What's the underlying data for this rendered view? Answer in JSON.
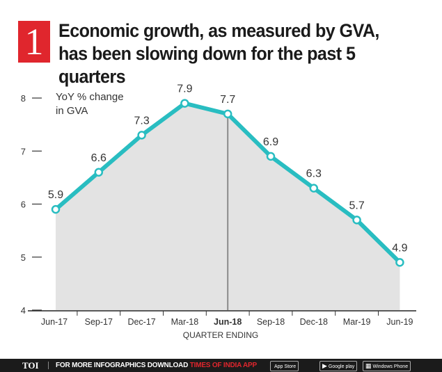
{
  "header": {
    "number": "1",
    "title": "Economic growth, as measured by GVA, has been slowing down for the past 5 quarters"
  },
  "chart_data": {
    "type": "area",
    "categories": [
      "Jun-17",
      "Sep-17",
      "Dec-17",
      "Mar-18",
      "Jun-18",
      "Sep-18",
      "Dec-18",
      "Mar-19",
      "Jun-19"
    ],
    "series": [
      {
        "values": [
          5.9,
          6.6,
          7.3,
          7.9,
          7.7,
          6.9,
          6.3,
          5.7,
          4.9
        ]
      }
    ],
    "value_labels": [
      "5.9",
      "6.6",
      "7.3",
      "7.9",
      "7.7",
      "6.9",
      "6.3",
      "5.7",
      "4.9"
    ],
    "highlight_category": "Jun-18",
    "annotation": "YoY % change\nin GVA",
    "xlabel": "QUARTER ENDING",
    "ylabel": "",
    "ylim": [
      4,
      8
    ],
    "yticks": [
      "4",
      "5",
      "6",
      "7",
      "8"
    ],
    "colors": {
      "line": "#29bdc1",
      "fill": "#e3e3e3",
      "highlight_line": "#8a8a8a",
      "text": "#333333"
    }
  },
  "footer": {
    "brand": "TOI",
    "promo": "FOR MORE INFOGRAPHICS DOWNLOAD",
    "app_name": "TIMES OF INDIA APP",
    "stores": {
      "apple": "App Store",
      "google": "Google play",
      "windows": "Windows Phone"
    }
  }
}
